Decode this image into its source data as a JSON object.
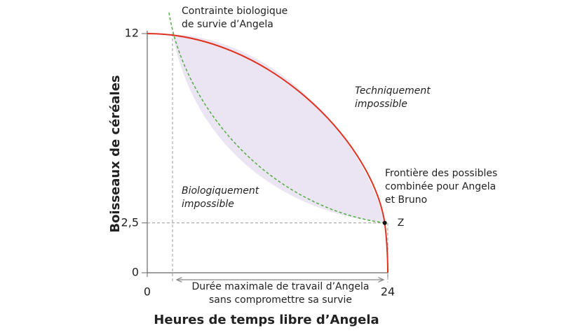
{
  "chart_data": {
    "type": "ppf",
    "x_label": "Heures de temps libre d’Angela",
    "y_label": "Boisseaux de céréales",
    "xlim": [
      0,
      24
    ],
    "ylim": [
      0,
      12
    ],
    "xticks": [
      0,
      24
    ],
    "yticks": [
      0,
      {
        "value": 2.5,
        "label": "2,5"
      },
      12
    ],
    "frontier_color": "#e0301e",
    "constraint_color": "#4caf3c",
    "feasible_color": "#ebe4f2",
    "point": {
      "label": "Z",
      "x": 23.7,
      "y": 2.5
    },
    "annotations": {
      "constraint": [
        "Contrainte biologique",
        "de survie d’Angela"
      ],
      "technically_impossible": [
        "Techniquement",
        "impossible"
      ],
      "biologically_impossible": [
        "Biologiquement",
        "impossible"
      ],
      "frontier": [
        "Frontière des possibles",
        "combinée pour Angela",
        "et Bruno"
      ],
      "max_work": [
        "Durée maximale de travail d’Angela",
        "sans compromettre sa survie"
      ]
    }
  }
}
